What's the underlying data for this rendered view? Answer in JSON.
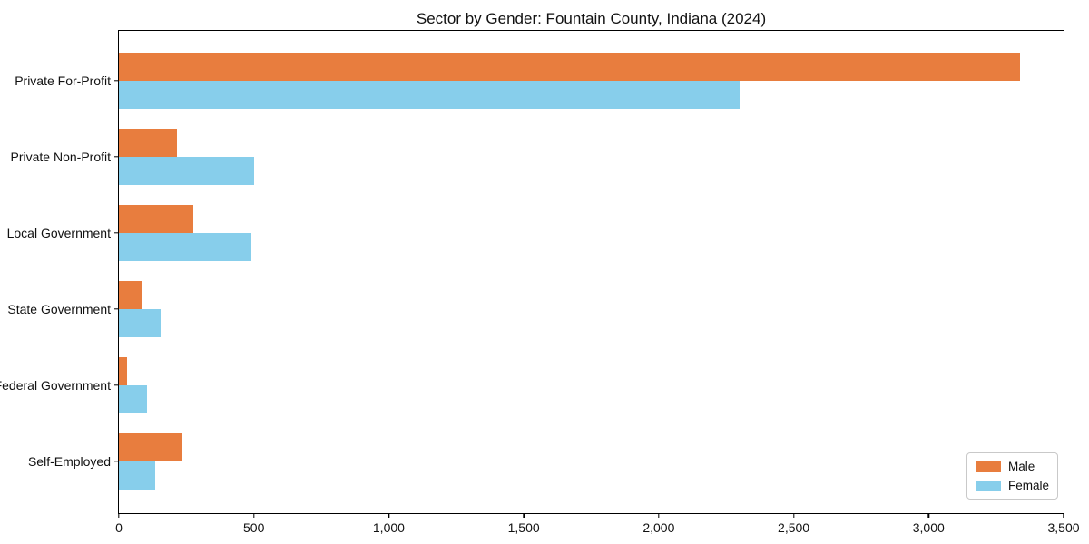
{
  "chart_data": {
    "type": "bar",
    "orientation": "horizontal",
    "title": "Sector by Gender: Fountain County, Indiana (2024)",
    "categories": [
      "Private For-Profit",
      "Private Non-Profit",
      "Local Government",
      "State Government",
      "Federal Government",
      "Self-Employed"
    ],
    "series": [
      {
        "name": "Male",
        "color": "#e87d3e",
        "values": [
          3340,
          215,
          275,
          85,
          30,
          235
        ]
      },
      {
        "name": "Female",
        "color": "#87ceeb",
        "values": [
          2300,
          500,
          490,
          155,
          105,
          135
        ]
      }
    ],
    "xlabel": "",
    "ylabel": "",
    "xlim": [
      0,
      3500
    ],
    "x_ticks": [
      0,
      500,
      1000,
      1500,
      2000,
      2500,
      3000,
      3500
    ],
    "x_tick_labels": [
      "0",
      "500",
      "1,000",
      "1,500",
      "2,000",
      "2,500",
      "3,000",
      "3,500"
    ],
    "grid": false,
    "legend_position": "lower right",
    "legend_labels": [
      "Male",
      "Female"
    ]
  },
  "colors": {
    "male": "#e87d3e",
    "female": "#87ceeb",
    "spine": "#000000",
    "legend_border": "#c9c9c9",
    "background": "#ffffff",
    "text": "#111111"
  }
}
